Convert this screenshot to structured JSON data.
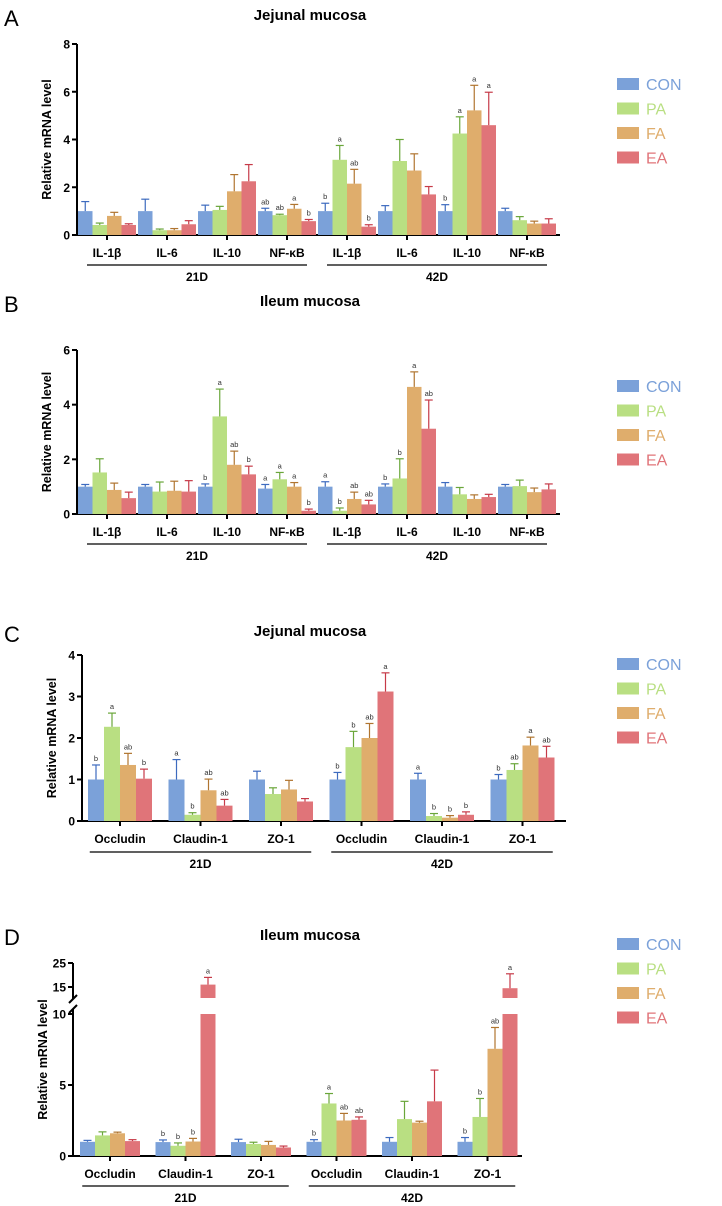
{
  "legend": [
    {
      "name": "CON",
      "color": "#7ba1d9",
      "err": "#3d6bbf"
    },
    {
      "name": "PA",
      "color": "#b9df82",
      "err": "#6aa63a"
    },
    {
      "name": "FA",
      "color": "#dfad6c",
      "err": "#b07530"
    },
    {
      "name": "EA",
      "color": "#e07479",
      "err": "#c63a48"
    }
  ],
  "chart_data": [
    {
      "panel": "A",
      "type": "bar",
      "title": "Jejunal mucosa",
      "ylabel": "Relative mRNA level",
      "ylim": [
        0,
        8
      ],
      "yticks": [
        0,
        2,
        4,
        6,
        8
      ],
      "groups": [
        {
          "label": "21D",
          "categories": [
            {
              "label": "IL-1β",
              "values": [
                1.0,
                0.42,
                0.8,
                0.42
              ],
              "errors": [
                0.4,
                0.08,
                0.15,
                0.05
              ],
              "sig": [
                "",
                "",
                "",
                ""
              ]
            },
            {
              "label": "IL-6",
              "values": [
                1.0,
                0.2,
                0.2,
                0.45
              ],
              "errors": [
                0.5,
                0.05,
                0.07,
                0.15
              ],
              "sig": [
                "",
                "",
                "",
                ""
              ]
            },
            {
              "label": "IL-10",
              "values": [
                1.0,
                1.05,
                1.83,
                2.25
              ],
              "errors": [
                0.25,
                0.15,
                0.7,
                0.7
              ],
              "sig": [
                "",
                "",
                "",
                ""
              ]
            },
            {
              "label": "NF-κB",
              "values": [
                1.0,
                0.83,
                1.1,
                0.58
              ],
              "errors": [
                0.12,
                0.04,
                0.18,
                0.07
              ],
              "sig": [
                "ab",
                "ab",
                "a",
                "b"
              ]
            }
          ]
        },
        {
          "label": "42D",
          "categories": [
            {
              "label": "IL-1β",
              "values": [
                1.0,
                3.15,
                2.15,
                0.35
              ],
              "errors": [
                0.33,
                0.6,
                0.6,
                0.08
              ],
              "sig": [
                "b",
                "a",
                "ab",
                "b"
              ]
            },
            {
              "label": "IL-6",
              "values": [
                1.0,
                3.1,
                2.7,
                1.7
              ],
              "errors": [
                0.23,
                0.9,
                0.7,
                0.33
              ],
              "sig": [
                "",
                "",
                "",
                ""
              ]
            },
            {
              "label": "IL-10",
              "values": [
                1.0,
                4.25,
                5.22,
                4.6
              ],
              "errors": [
                0.27,
                0.7,
                1.05,
                1.38
              ],
              "sig": [
                "b",
                "a",
                "a",
                "a"
              ]
            },
            {
              "label": "NF-κB",
              "values": [
                1.0,
                0.62,
                0.48,
                0.48
              ],
              "errors": [
                0.12,
                0.15,
                0.1,
                0.2
              ],
              "sig": [
                "",
                "",
                "",
                ""
              ]
            }
          ]
        }
      ]
    },
    {
      "panel": "B",
      "type": "bar",
      "title": "Ileum mucosa",
      "ylabel": "Relative mRNA level",
      "ylim": [
        0,
        6
      ],
      "yticks": [
        0,
        2,
        4,
        6
      ],
      "groups": [
        {
          "label": "21D",
          "categories": [
            {
              "label": "IL-1β",
              "values": [
                1.0,
                1.52,
                0.88,
                0.58
              ],
              "errors": [
                0.08,
                0.5,
                0.25,
                0.22
              ],
              "sig": [
                "",
                "",
                "",
                ""
              ]
            },
            {
              "label": "IL-6",
              "values": [
                1.0,
                0.82,
                0.85,
                0.82
              ],
              "errors": [
                0.08,
                0.35,
                0.35,
                0.4
              ],
              "sig": [
                "",
                "",
                "",
                ""
              ]
            },
            {
              "label": "IL-10",
              "values": [
                1.0,
                3.57,
                1.8,
                1.45
              ],
              "errors": [
                0.1,
                1.0,
                0.5,
                0.3
              ],
              "sig": [
                "b",
                "a",
                "ab",
                "b"
              ]
            },
            {
              "label": "NF-κB",
              "values": [
                0.93,
                1.27,
                1.0,
                0.12
              ],
              "errors": [
                0.15,
                0.25,
                0.15,
                0.06
              ],
              "sig": [
                "a",
                "a",
                "a",
                "b"
              ]
            }
          ]
        },
        {
          "label": "42D",
          "categories": [
            {
              "label": "IL-1β",
              "values": [
                1.0,
                0.12,
                0.55,
                0.35
              ],
              "errors": [
                0.18,
                0.1,
                0.25,
                0.15
              ],
              "sig": [
                "a",
                "b",
                "ab",
                "ab"
              ]
            },
            {
              "label": "IL-6",
              "values": [
                1.0,
                1.3,
                4.65,
                3.12
              ],
              "errors": [
                0.1,
                0.72,
                0.55,
                1.05
              ],
              "sig": [
                "b",
                "b",
                "a",
                "ab"
              ]
            },
            {
              "label": "IL-10",
              "values": [
                1.0,
                0.72,
                0.55,
                0.62
              ],
              "errors": [
                0.15,
                0.25,
                0.15,
                0.1
              ],
              "sig": [
                "",
                "",
                "",
                ""
              ]
            },
            {
              "label": "NF-κB",
              "values": [
                1.0,
                1.02,
                0.8,
                0.9
              ],
              "errors": [
                0.08,
                0.22,
                0.15,
                0.2
              ],
              "sig": [
                "",
                "",
                "",
                ""
              ]
            }
          ]
        }
      ]
    },
    {
      "panel": "C",
      "type": "bar",
      "title": "Jejunal mucosa",
      "ylabel": "Relative mRNA level",
      "ylim": [
        0,
        4
      ],
      "yticks": [
        0,
        1,
        2,
        3,
        4
      ],
      "groups": [
        {
          "label": "21D",
          "categories": [
            {
              "label": "Occludin",
              "values": [
                1.0,
                2.27,
                1.35,
                1.02
              ],
              "errors": [
                0.35,
                0.33,
                0.28,
                0.23
              ],
              "sig": [
                "b",
                "a",
                "ab",
                "b"
              ]
            },
            {
              "label": "Claudin-1",
              "values": [
                1.0,
                0.15,
                0.74,
                0.37
              ],
              "errors": [
                0.48,
                0.05,
                0.27,
                0.15
              ],
              "sig": [
                "a",
                "b",
                "ab",
                "ab"
              ]
            },
            {
              "label": "ZO-1",
              "values": [
                1.0,
                0.65,
                0.76,
                0.47
              ],
              "errors": [
                0.2,
                0.15,
                0.22,
                0.07
              ],
              "sig": [
                "",
                "",
                "",
                ""
              ]
            }
          ]
        },
        {
          "label": "42D",
          "categories": [
            {
              "label": "Occludin",
              "values": [
                1.0,
                1.78,
                2.0,
                3.12
              ],
              "errors": [
                0.17,
                0.38,
                0.35,
                0.45
              ],
              "sig": [
                "b",
                "b",
                "ab",
                "a"
              ]
            },
            {
              "label": "Claudin-1",
              "values": [
                1.0,
                0.12,
                0.08,
                0.15
              ],
              "errors": [
                0.15,
                0.06,
                0.05,
                0.07
              ],
              "sig": [
                "a",
                "b",
                "b",
                "b"
              ]
            },
            {
              "label": "ZO-1",
              "values": [
                1.0,
                1.23,
                1.82,
                1.53
              ],
              "errors": [
                0.12,
                0.15,
                0.2,
                0.27
              ],
              "sig": [
                "b",
                "ab",
                "a",
                "ab"
              ]
            }
          ]
        }
      ]
    },
    {
      "panel": "D",
      "type": "bar",
      "title": "Ileum mucosa",
      "ylabel": "Relative mRNA level",
      "ylim": [
        0,
        25
      ],
      "yticks": [
        0,
        5,
        10,
        15,
        25
      ],
      "axis_break": [
        10,
        12
      ],
      "groups": [
        {
          "label": "21D",
          "categories": [
            {
              "label": "Occludin",
              "values": [
                1.0,
                1.45,
                1.6,
                1.05
              ],
              "errors": [
                0.1,
                0.25,
                0.08,
                0.1
              ],
              "sig": [
                "",
                "",
                "",
                ""
              ]
            },
            {
              "label": "Claudin-1",
              "values": [
                0.98,
                0.72,
                1.02,
                16.0
              ],
              "errors": [
                0.15,
                0.2,
                0.22,
                3.0
              ],
              "sig": [
                "b",
                "b",
                "b",
                "a"
              ]
            },
            {
              "label": "ZO-1",
              "values": [
                0.98,
                0.85,
                0.78,
                0.6
              ],
              "errors": [
                0.2,
                0.12,
                0.25,
                0.1
              ],
              "sig": [
                "",
                "",
                "",
                ""
              ]
            }
          ]
        },
        {
          "label": "42D",
          "categories": [
            {
              "label": "Occludin",
              "values": [
                1.0,
                3.7,
                2.5,
                2.55
              ],
              "errors": [
                0.15,
                0.7,
                0.5,
                0.2
              ],
              "sig": [
                "b",
                "a",
                "ab",
                "ab"
              ]
            },
            {
              "label": "Claudin-1",
              "values": [
                1.0,
                2.6,
                2.35,
                3.85
              ],
              "errors": [
                0.3,
                1.25,
                0.1,
                2.2
              ],
              "sig": [
                "",
                "",
                "",
                ""
              ]
            },
            {
              "label": "ZO-1",
              "values": [
                1.0,
                2.75,
                7.55,
                14.5
              ],
              "errors": [
                0.3,
                1.3,
                1.5,
                6.0
              ],
              "sig": [
                "b",
                "b",
                "ab",
                "a"
              ]
            }
          ]
        }
      ]
    }
  ]
}
